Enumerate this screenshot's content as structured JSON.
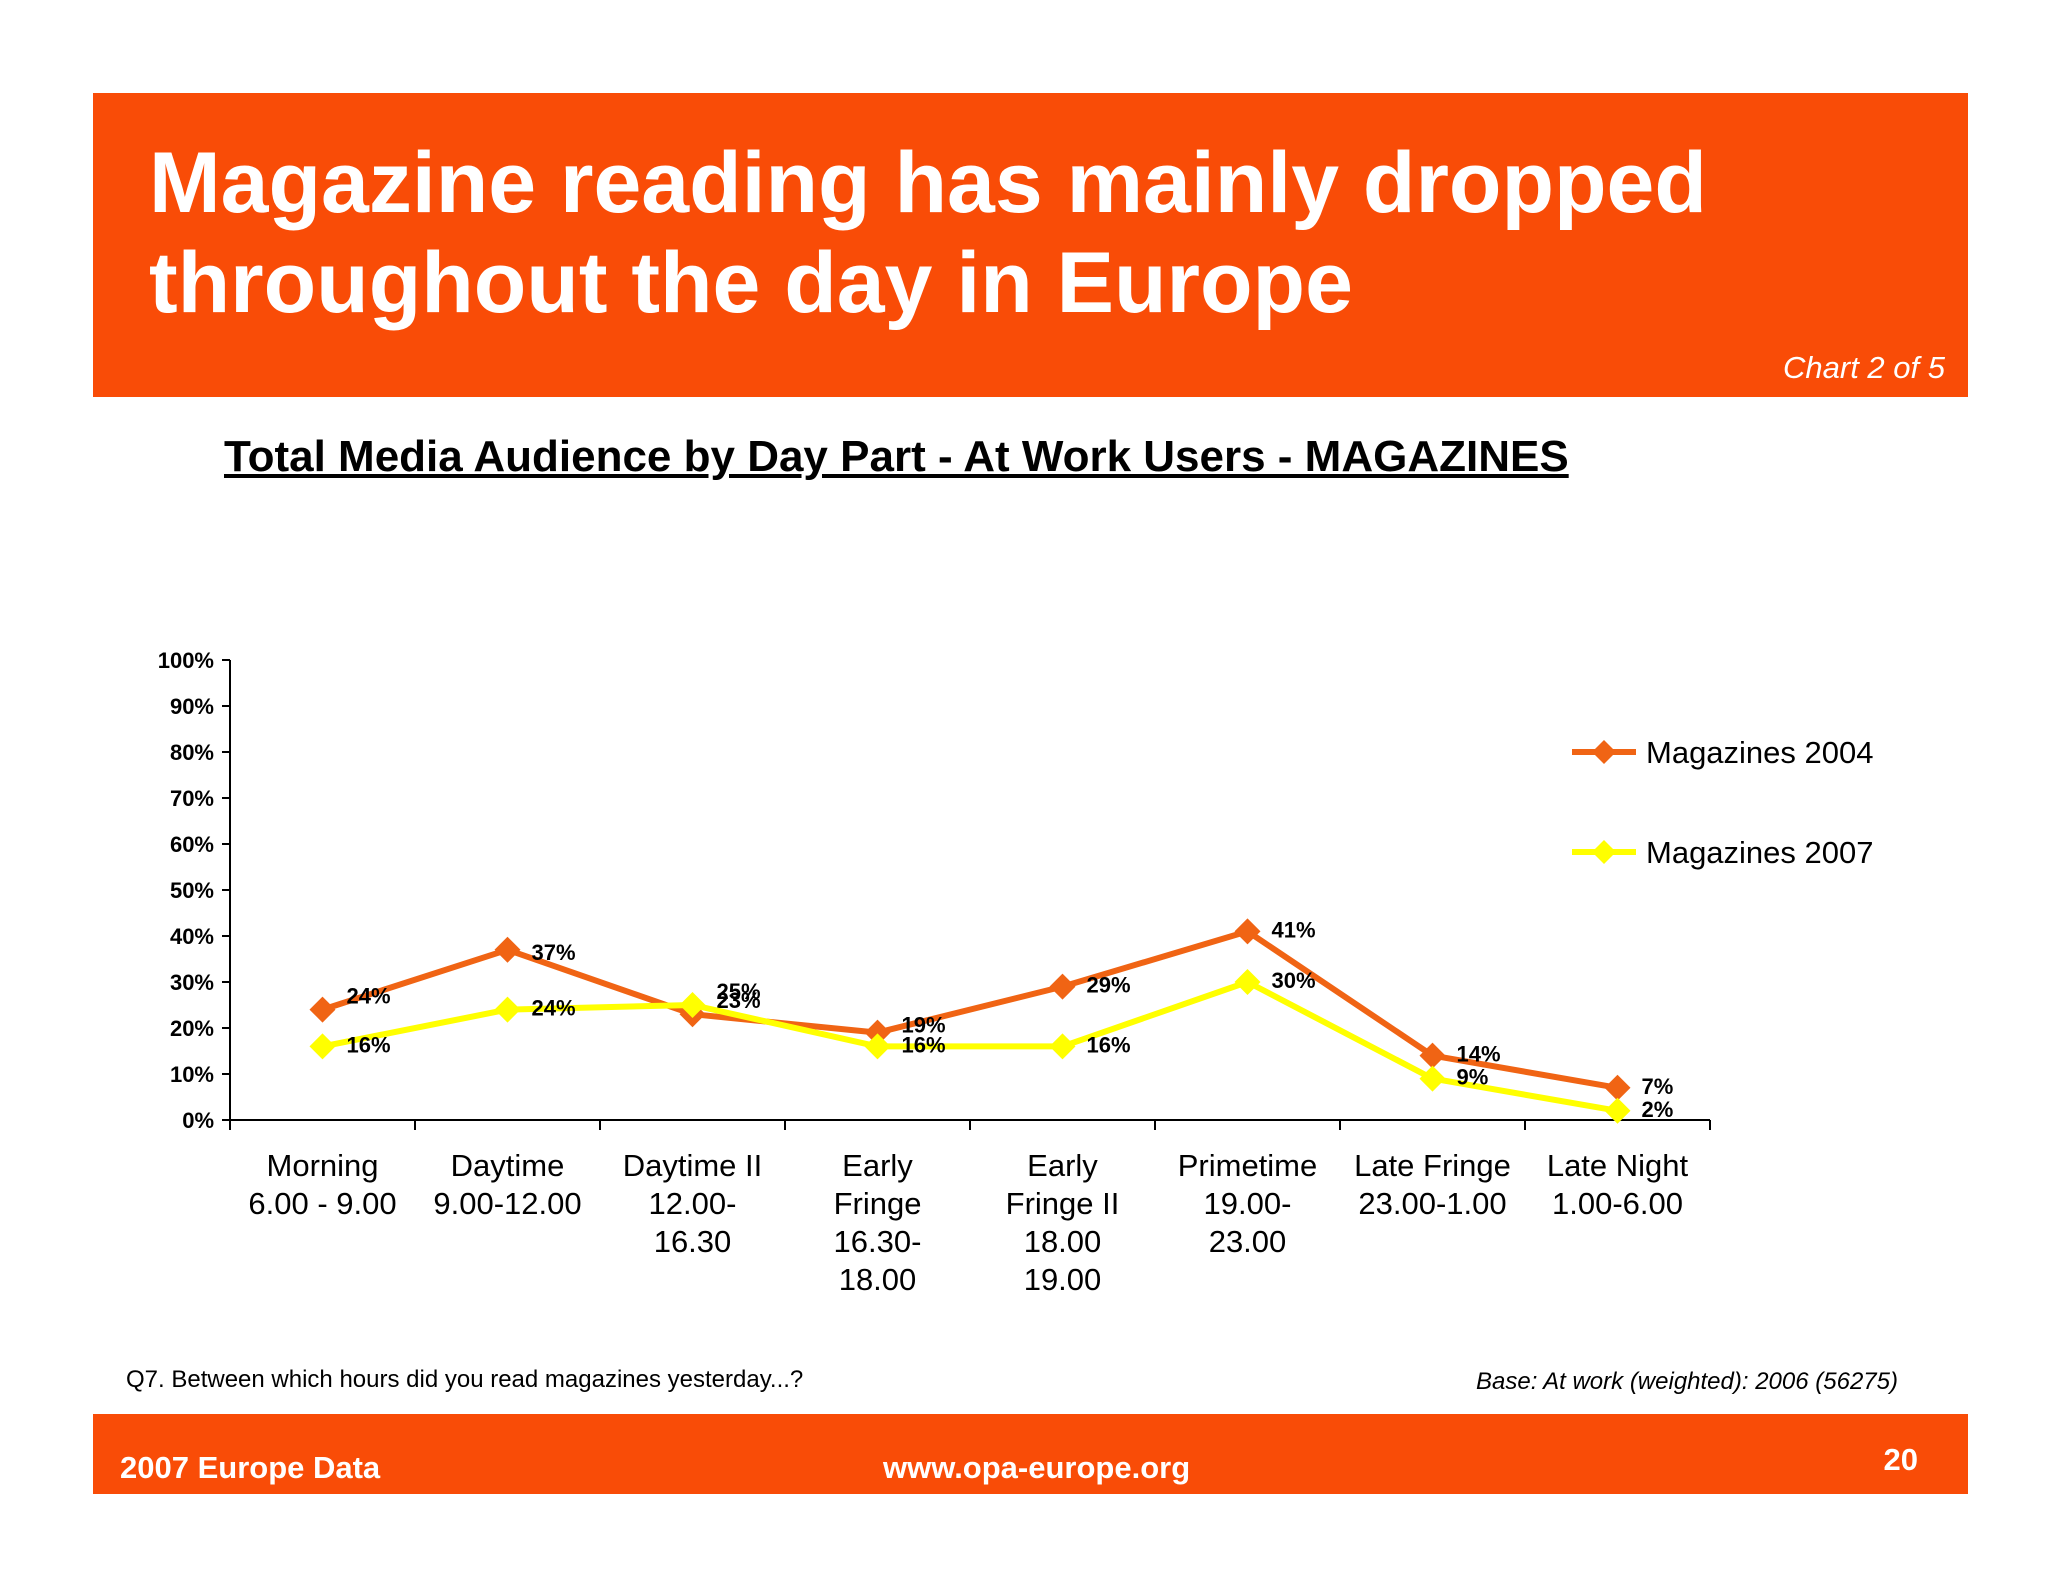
{
  "header": {
    "title_line1": "Magazine reading has mainly dropped",
    "title_line2": "throughout the day in Europe",
    "chart_counter": "Chart 2 of 5"
  },
  "chart_heading": "Total Media Audience by Day Part - At Work Users - MAGAZINES",
  "chart_data": {
    "type": "line",
    "title": "Total Media Audience by Day Part - At Work Users - MAGAZINES",
    "xlabel": "",
    "ylabel": "",
    "ylim": [
      0,
      100
    ],
    "ytick_labels": [
      "0%",
      "10%",
      "20%",
      "30%",
      "40%",
      "50%",
      "60%",
      "70%",
      "80%",
      "90%",
      "100%"
    ],
    "categories": [
      [
        "Morning",
        "6.00 - 9.00"
      ],
      [
        "Daytime",
        "9.00-12.00"
      ],
      [
        "Daytime II",
        "12.00-",
        "16.30"
      ],
      [
        "Early",
        "Fringe",
        "16.30-",
        "18.00"
      ],
      [
        "Early",
        "Fringe II",
        "18.00",
        "19.00"
      ],
      [
        "Primetime",
        "19.00-",
        "23.00"
      ],
      [
        "Late Fringe",
        "23.00-1.00"
      ],
      [
        "Late Night",
        "1.00-6.00"
      ]
    ],
    "series": [
      {
        "name": "Magazines 2004",
        "color": "#f06414",
        "values": [
          24,
          37,
          23,
          19,
          29,
          41,
          14,
          7
        ],
        "labels": [
          "24%",
          "37%",
          "23%",
          "19%",
          "29%",
          "41%",
          "14%",
          "7%"
        ]
      },
      {
        "name": "Magazines 2007",
        "color": "#ffff00",
        "values": [
          16,
          24,
          25,
          16,
          16,
          30,
          9,
          2
        ],
        "labels": [
          "16%",
          "24%",
          "25%",
          "16%",
          "16%",
          "30%",
          "9%",
          "2%"
        ]
      }
    ],
    "legend_position": "right",
    "grid": false
  },
  "question": "Q7. Between which hours did you read magazines yesterday...?",
  "base_note": "Base: At work (weighted): 2006 (56275)",
  "footer": {
    "left": "2007 Europe Data",
    "center": "www.opa-europe.org",
    "page_number": "20"
  }
}
